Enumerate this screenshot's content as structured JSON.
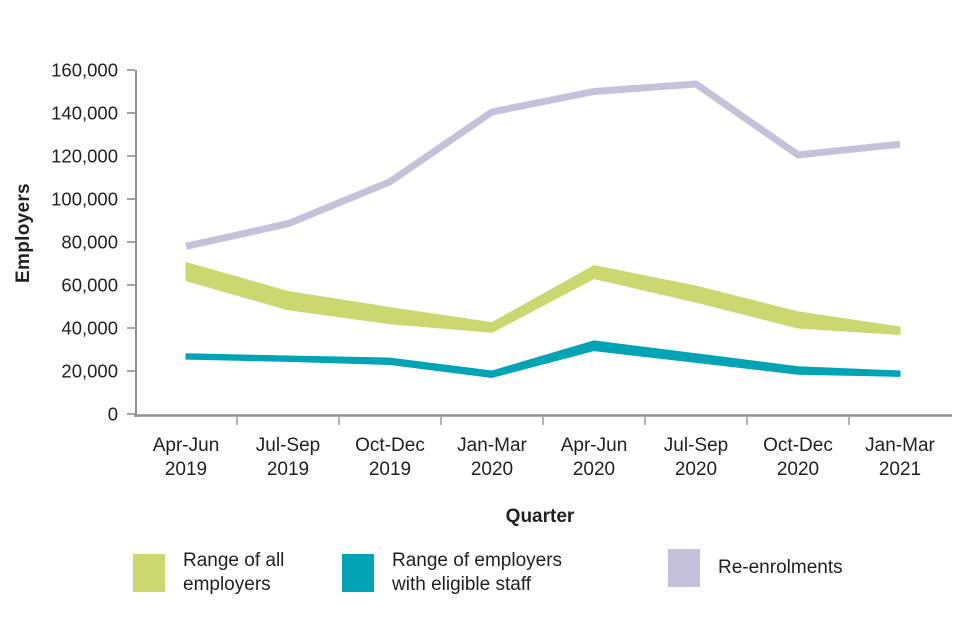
{
  "chart_data": {
    "type": "area",
    "title": "",
    "xlabel": "Quarter",
    "ylabel": "Employers",
    "grid": false,
    "legend_position": "bottom",
    "ylim": [
      0,
      160000
    ],
    "yticks": [
      0,
      20000,
      40000,
      60000,
      80000,
      100000,
      120000,
      140000,
      160000
    ],
    "ytick_labels": [
      "0",
      "20,000",
      "40,000",
      "60,000",
      "80,000",
      "100,000",
      "120,000",
      "140,000",
      "160,000"
    ],
    "categories": [
      "Apr-Jun\n2019",
      "Jul-Sep\n2019",
      "Oct-Dec\n2019",
      "Jan-Mar\n2020",
      "Apr-Jun\n2020",
      "Jul-Sep\n2020",
      "Oct-Dec\n2020",
      "Jan-Mar\n2021"
    ],
    "series": [
      {
        "name": "Range of all employers",
        "kind": "band",
        "color": "#cbd76f",
        "upper": [
          70500,
          57000,
          49500,
          42500,
          69000,
          59500,
          47500,
          40500
        ],
        "lower": [
          62000,
          48500,
          42000,
          38000,
          63000,
          52000,
          40000,
          37000
        ]
      },
      {
        "name": "Range of employers with eligible staff",
        "kind": "band",
        "color": "#00a4b5",
        "upper": [
          28000,
          27000,
          26000,
          20000,
          34000,
          28000,
          22000,
          20000
        ],
        "lower": [
          25500,
          24500,
          23000,
          17000,
          29500,
          24000,
          18500,
          17500
        ]
      },
      {
        "name": "Re-enrolments",
        "kind": "line",
        "color": "#c6c1db",
        "values": [
          78000,
          88500,
          108000,
          140500,
          150000,
          153500,
          120500,
          125500
        ]
      }
    ],
    "axis_color": "#8f9193",
    "tick_color": "#9a9c9e",
    "text_color": "#231f20"
  },
  "legend": {
    "items": [
      {
        "label": "Range of all\nemployers",
        "color": "#cbd76f"
      },
      {
        "label": "Range of employers\nwith eligible staff",
        "color": "#00a4b5"
      },
      {
        "label": "Re-enrolments",
        "color": "#c6c1db"
      }
    ]
  }
}
